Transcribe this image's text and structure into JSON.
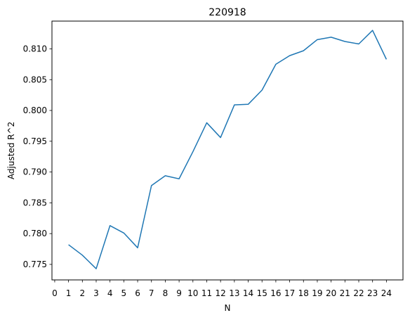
{
  "chart_data": {
    "type": "line",
    "title": "220918",
    "xlabel": "N",
    "ylabel": "Adjusted R^2",
    "x": [
      1,
      2,
      3,
      4,
      5,
      6,
      7,
      8,
      9,
      10,
      11,
      12,
      13,
      14,
      15,
      16,
      17,
      18,
      19,
      20,
      21,
      22,
      23,
      24
    ],
    "series": [
      {
        "values": [
          0.7782,
          0.7765,
          0.7743,
          0.7813,
          0.7801,
          0.7777,
          0.7878,
          0.7894,
          0.7889,
          0.7933,
          0.798,
          0.7956,
          0.8009,
          0.801,
          0.8033,
          0.8075,
          0.8089,
          0.8097,
          0.8115,
          0.8119,
          0.8112,
          0.8108,
          0.813,
          0.8083
        ],
        "color": "#1f77b4"
      }
    ],
    "xlim": [
      -0.2,
      25.2
    ],
    "ylim": [
      0.77248,
      0.81451
    ],
    "xticks": [
      "0",
      "1",
      "2",
      "3",
      "4",
      "5",
      "6",
      "7",
      "8",
      "9",
      "10",
      "11",
      "12",
      "13",
      "14",
      "15",
      "16",
      "17",
      "18",
      "19",
      "20",
      "21",
      "22",
      "23",
      "24"
    ],
    "yticks": [
      "0.775",
      "0.780",
      "0.785",
      "0.790",
      "0.795",
      "0.800",
      "0.805",
      "0.810"
    ],
    "grid": false,
    "legend": false
  }
}
